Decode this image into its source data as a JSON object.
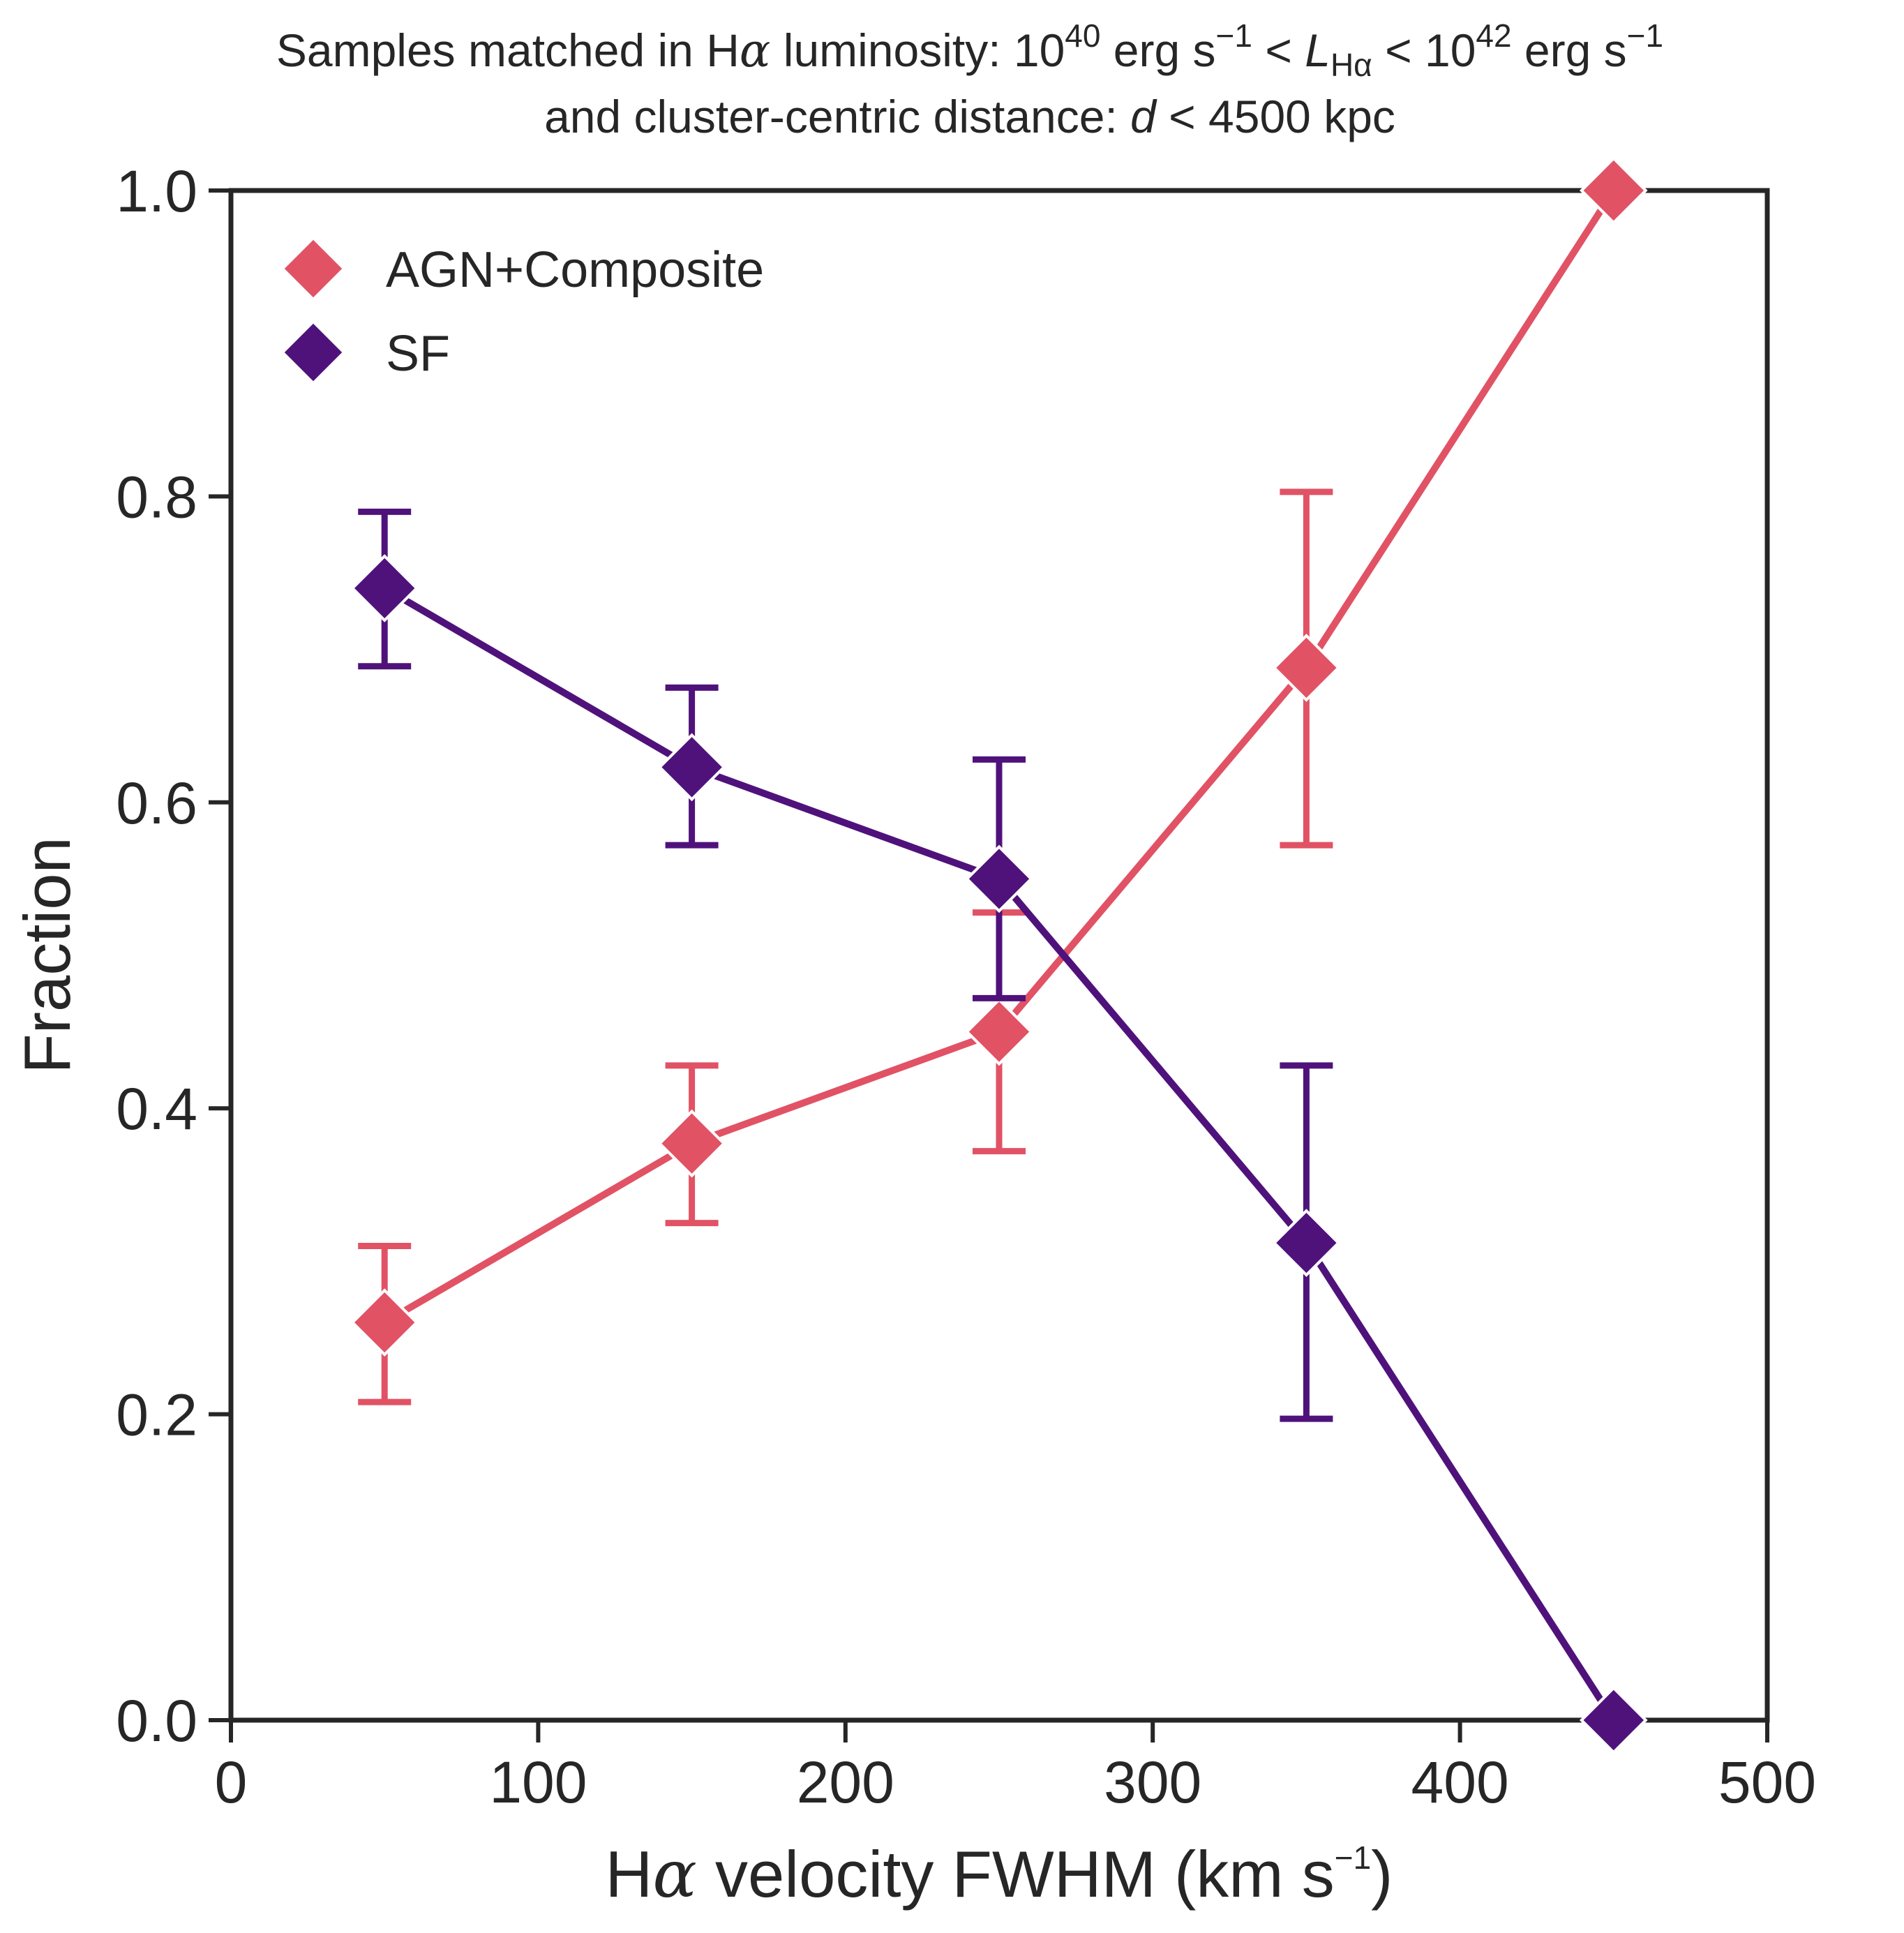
{
  "chart_data": {
    "type": "line",
    "title_line1": {
      "prefix": "Samples matched in H",
      "alpha": "α",
      "middle": " luminosity: 10",
      "exp1": "40",
      "unit1": " erg s",
      "exp_neg1": "−1",
      "lt1": " < ",
      "L": "L",
      "L_sub": "Hα",
      "lt2": " < 10",
      "exp2": "42",
      "unit2": " erg s",
      "exp_neg2": "−1"
    },
    "title_line2": {
      "prefix": "and cluster-centric distance: ",
      "d": "d",
      "suffix": " < 4500 kpc"
    },
    "xlabel": {
      "prefix": "H",
      "alpha": "α",
      "middle": " velocity FWHM (km s",
      "exp": "−1",
      "suffix": ")"
    },
    "ylabel": "Fraction",
    "xlim": [
      0,
      500
    ],
    "ylim": [
      0,
      1.0
    ],
    "xticks": [
      0,
      100,
      200,
      300,
      400,
      500
    ],
    "xtick_labels": [
      "0",
      "100",
      "200",
      "300",
      "400",
      "500"
    ],
    "yticks": [
      0.0,
      0.2,
      0.4,
      0.6,
      0.8,
      1.0
    ],
    "ytick_labels": [
      "0.0",
      "0.2",
      "0.4",
      "0.6",
      "0.8",
      "1.0"
    ],
    "grid": false,
    "legend_position": "top-left",
    "x": [
      50,
      150,
      250,
      350,
      450
    ],
    "series": [
      {
        "name": "AGN+Composite",
        "color": "#e15265",
        "marker": "diamond",
        "values": [
          0.26,
          0.377,
          0.45,
          0.688,
          1.0
        ],
        "err_low": [
          0.208,
          0.325,
          0.372,
          0.572,
          null
        ],
        "err_high": [
          0.31,
          0.428,
          0.528,
          0.803,
          null
        ]
      },
      {
        "name": "SF",
        "color": "#4f127b",
        "marker": "diamond",
        "values": [
          0.74,
          0.623,
          0.55,
          0.312,
          0.0
        ],
        "err_low": [
          0.689,
          0.572,
          0.472,
          0.197,
          null
        ],
        "err_high": [
          0.79,
          0.675,
          0.628,
          0.428,
          null
        ]
      }
    ]
  }
}
